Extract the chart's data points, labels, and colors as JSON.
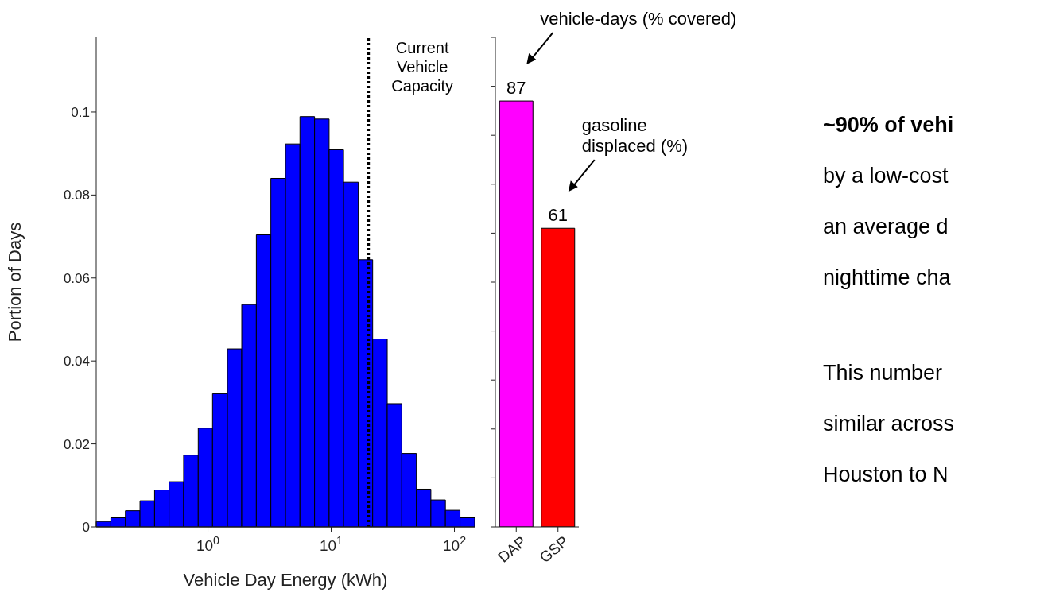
{
  "chart_data": [
    {
      "type": "histogram",
      "xlabel": "Vehicle Day Energy (kWh)",
      "ylabel": "Portion of Days",
      "color": "#0000ff",
      "log": "x",
      "bins": [
        0.124,
        0.163,
        0.214,
        0.281,
        0.369,
        0.484,
        0.635,
        0.834,
        1.09,
        1.44,
        1.88,
        2.47,
        3.24,
        4.26,
        5.58,
        7.33,
        9.62,
        12.6,
        16.6,
        21.7,
        28.5,
        37.4,
        49.1,
        64.4,
        84.5,
        111,
        146
      ],
      "values": [
        0.0013,
        0.0022,
        0.0039,
        0.0063,
        0.0089,
        0.0109,
        0.0173,
        0.0238,
        0.0321,
        0.0429,
        0.0536,
        0.0704,
        0.084,
        0.0923,
        0.0989,
        0.0983,
        0.0909,
        0.0831,
        0.0644,
        0.0453,
        0.0297,
        0.0177,
        0.0091,
        0.0065,
        0.004,
        0.0022
      ],
      "xlim": [
        0.124,
        146
      ],
      "xticks": [
        {
          "value": 1,
          "label": "10$^{0}$"
        },
        {
          "value": 10,
          "label": "10$^{1}$"
        },
        {
          "value": 100,
          "label": "10$^{2}$"
        }
      ],
      "ylim": [
        0,
        0.118
      ],
      "yticks": [
        0,
        0.02,
        0.04,
        0.06,
        0.08,
        0.1
      ],
      "grid": false,
      "legend": false,
      "ref_lines": [
        {
          "axis": "x",
          "value": 20,
          "label": "Current\nVehicle\nCapacity",
          "color": "#000000",
          "line_style": "dotted"
        }
      ]
    },
    {
      "type": "bar",
      "categories": [
        "DAP",
        "GSP"
      ],
      "values": [
        87,
        61
      ],
      "colors": [
        "#ff00ff",
        "#ff0000"
      ],
      "data_labels": true,
      "ylim": [
        0,
        100
      ],
      "yticks": [
        {
          "value": 0,
          "label": null
        },
        {
          "value": 10,
          "label": null
        },
        {
          "value": 20,
          "label": null
        },
        {
          "value": 30,
          "label": null
        },
        {
          "value": 40,
          "label": null
        },
        {
          "value": 50,
          "label": null
        },
        {
          "value": 60,
          "label": null
        },
        {
          "value": 70,
          "label": null
        },
        {
          "value": 80,
          "label": null
        },
        {
          "value": 90,
          "label": null
        },
        {
          "value": 100,
          "label": null
        }
      ],
      "tick_labels": "x",
      "grid": false,
      "legend": false,
      "annotations": [
        "vehicle-days (% covered)",
        "gasoline\ndisplaced (%)"
      ]
    },
    {
      "type": "other",
      "annotations": [
        "~90% of vehi",
        "by a low-cost",
        "an average d",
        "nighttime cha",
        "This number",
        "similar across",
        "Houston to N"
      ]
    }
  ]
}
